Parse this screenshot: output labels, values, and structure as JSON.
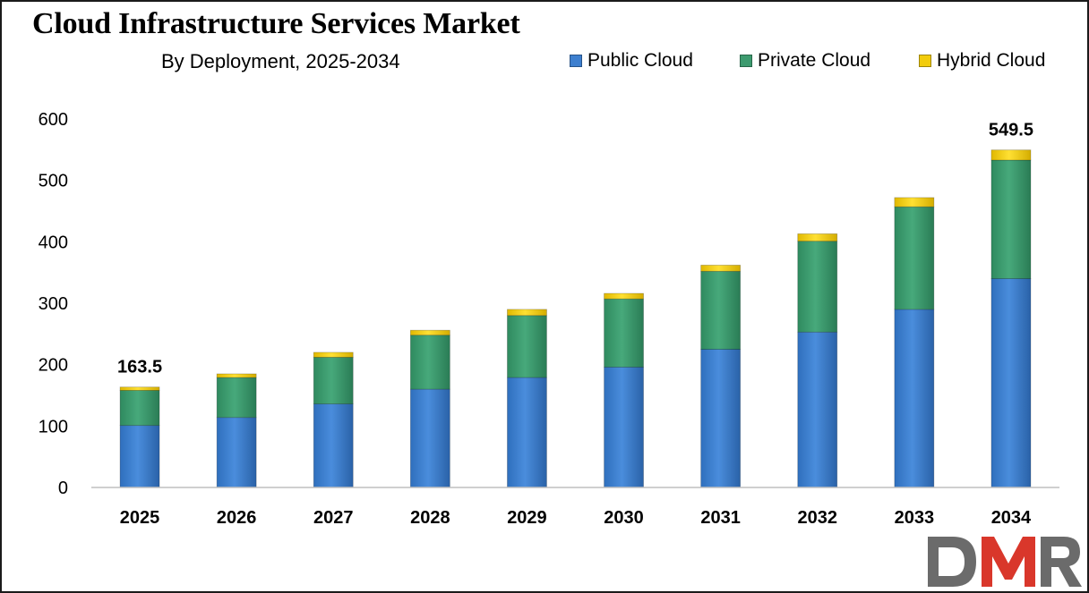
{
  "chart_data": {
    "type": "bar",
    "stacked": true,
    "title": "Cloud Infrastructure Services Market",
    "subtitle": "By Deployment, 2025-2034",
    "categories": [
      "2025",
      "2026",
      "2027",
      "2028",
      "2029",
      "2030",
      "2031",
      "2032",
      "2033",
      "2034"
    ],
    "series": [
      {
        "name": "Public Cloud",
        "color": "#3d7fcf",
        "values": [
          101,
          114,
          136,
          160,
          179,
          196,
          225,
          253,
          290,
          340
        ]
      },
      {
        "name": "Private Cloud",
        "color": "#3d9b6f",
        "values": [
          57,
          65,
          76,
          88,
          101,
          111,
          127,
          148,
          167,
          193
        ]
      },
      {
        "name": "Hybrid Cloud",
        "color": "#f2cc0c",
        "values": [
          5.5,
          6,
          8,
          8,
          10,
          9,
          10,
          12,
          15,
          16.5
        ]
      }
    ],
    "data_labels": [
      {
        "category": "2025",
        "text": "163.5"
      },
      {
        "category": "2034",
        "text": "549.5"
      }
    ],
    "yticks": [
      "0",
      "100",
      "200",
      "300",
      "400",
      "500",
      "600"
    ],
    "ylim": [
      0,
      600
    ],
    "legend_position": "top-right",
    "grid": false
  },
  "watermark": {
    "text": "DMR"
  }
}
